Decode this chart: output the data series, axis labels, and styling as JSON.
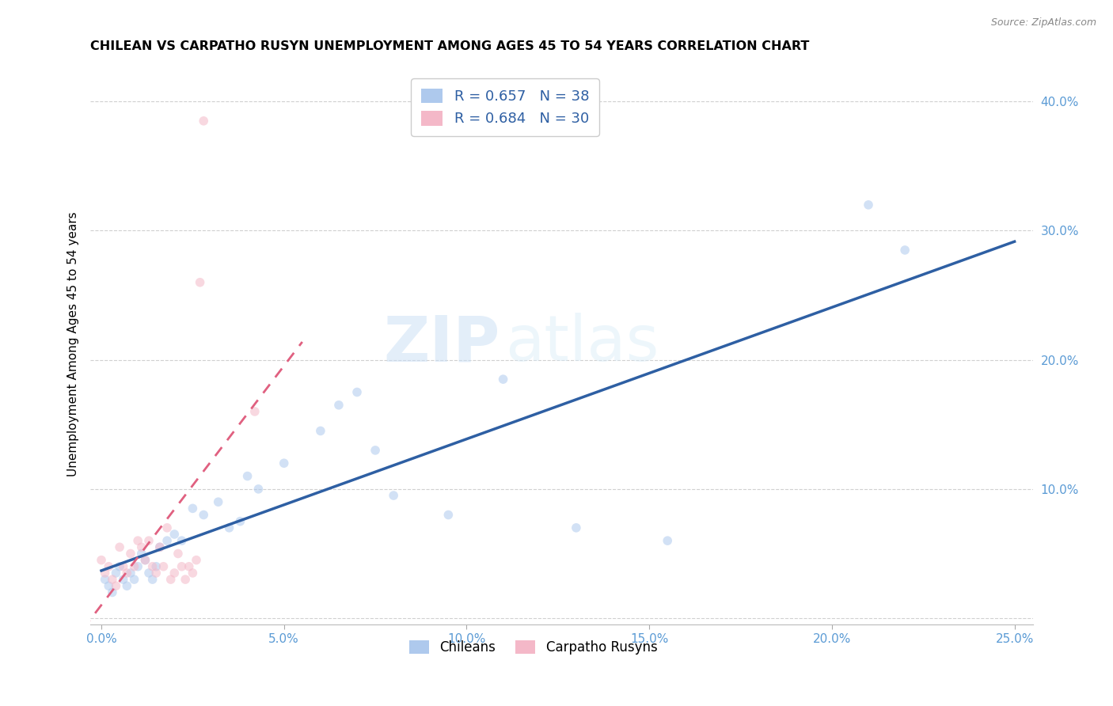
{
  "title": "CHILEAN VS CARPATHO RUSYN UNEMPLOYMENT AMONG AGES 45 TO 54 YEARS CORRELATION CHART",
  "source": "Source: ZipAtlas.com",
  "tick_color": "#5b9bd5",
  "ylabel": "Unemployment Among Ages 45 to 54 years",
  "xlim": [
    -0.003,
    0.255
  ],
  "ylim": [
    -0.005,
    0.43
  ],
  "xticks": [
    0.0,
    0.05,
    0.1,
    0.15,
    0.2,
    0.25
  ],
  "yticks": [
    0.0,
    0.1,
    0.2,
    0.3,
    0.4
  ],
  "xtick_labels": [
    "0.0%",
    "5.0%",
    "10.0%",
    "15.0%",
    "20.0%",
    "25.0%"
  ],
  "ytick_labels": [
    "",
    "10.0%",
    "20.0%",
    "30.0%",
    "40.0%"
  ],
  "chilean_color": "#aec9ed",
  "carpatho_color": "#f4b8c8",
  "chilean_line_color": "#2e5fa3",
  "carpatho_line_color": "#e06080",
  "R_chilean": 0.657,
  "N_chilean": 38,
  "R_carpatho": 0.684,
  "N_carpatho": 30,
  "watermark_text": "ZIP",
  "watermark_text2": "atlas",
  "marker_size": 70,
  "marker_alpha": 0.55,
  "grid_color": "#d0d0d0",
  "background_color": "#ffffff",
  "legend_fontsize": 13,
  "title_fontsize": 11.5,
  "axis_label_fontsize": 11,
  "tick_fontsize": 11,
  "chilean_x": [
    0.001,
    0.002,
    0.003,
    0.004,
    0.005,
    0.006,
    0.007,
    0.008,
    0.009,
    0.01,
    0.011,
    0.012,
    0.013,
    0.014,
    0.015,
    0.016,
    0.018,
    0.02,
    0.022,
    0.025,
    0.028,
    0.032,
    0.035,
    0.038,
    0.04,
    0.043,
    0.05,
    0.06,
    0.065,
    0.07,
    0.075,
    0.08,
    0.095,
    0.11,
    0.13,
    0.155,
    0.21,
    0.22
  ],
  "chilean_y": [
    0.03,
    0.025,
    0.02,
    0.035,
    0.04,
    0.03,
    0.025,
    0.035,
    0.03,
    0.04,
    0.05,
    0.045,
    0.035,
    0.03,
    0.04,
    0.055,
    0.06,
    0.065,
    0.06,
    0.085,
    0.08,
    0.09,
    0.07,
    0.075,
    0.11,
    0.1,
    0.12,
    0.145,
    0.165,
    0.175,
    0.13,
    0.095,
    0.08,
    0.185,
    0.07,
    0.06,
    0.32,
    0.285
  ],
  "carpatho_x": [
    0.0,
    0.001,
    0.002,
    0.003,
    0.004,
    0.005,
    0.006,
    0.007,
    0.008,
    0.009,
    0.01,
    0.011,
    0.012,
    0.013,
    0.014,
    0.015,
    0.016,
    0.017,
    0.018,
    0.019,
    0.02,
    0.021,
    0.022,
    0.023,
    0.024,
    0.025,
    0.026,
    0.027,
    0.028,
    0.042
  ],
  "carpatho_y": [
    0.045,
    0.035,
    0.04,
    0.03,
    0.025,
    0.055,
    0.04,
    0.035,
    0.05,
    0.04,
    0.06,
    0.055,
    0.045,
    0.06,
    0.04,
    0.035,
    0.055,
    0.04,
    0.07,
    0.03,
    0.035,
    0.05,
    0.04,
    0.03,
    0.04,
    0.035,
    0.045,
    0.26,
    0.385,
    0.16
  ]
}
